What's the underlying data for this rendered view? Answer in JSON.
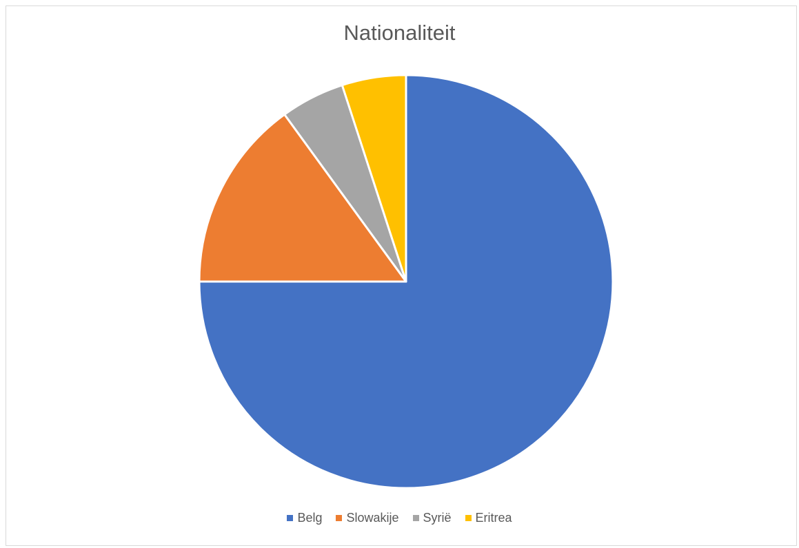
{
  "chart_data": {
    "type": "pie",
    "title": "Nationaliteit",
    "categories": [
      "Belg",
      "Slowakije",
      "Syrië",
      "Eritrea"
    ],
    "values": [
      75,
      15,
      5,
      5
    ],
    "colors": [
      "#4472c4",
      "#ed7d31",
      "#a5a5a5",
      "#ffc000"
    ],
    "legend_position": "bottom",
    "start_angle": "12 o'clock, clockwise"
  }
}
